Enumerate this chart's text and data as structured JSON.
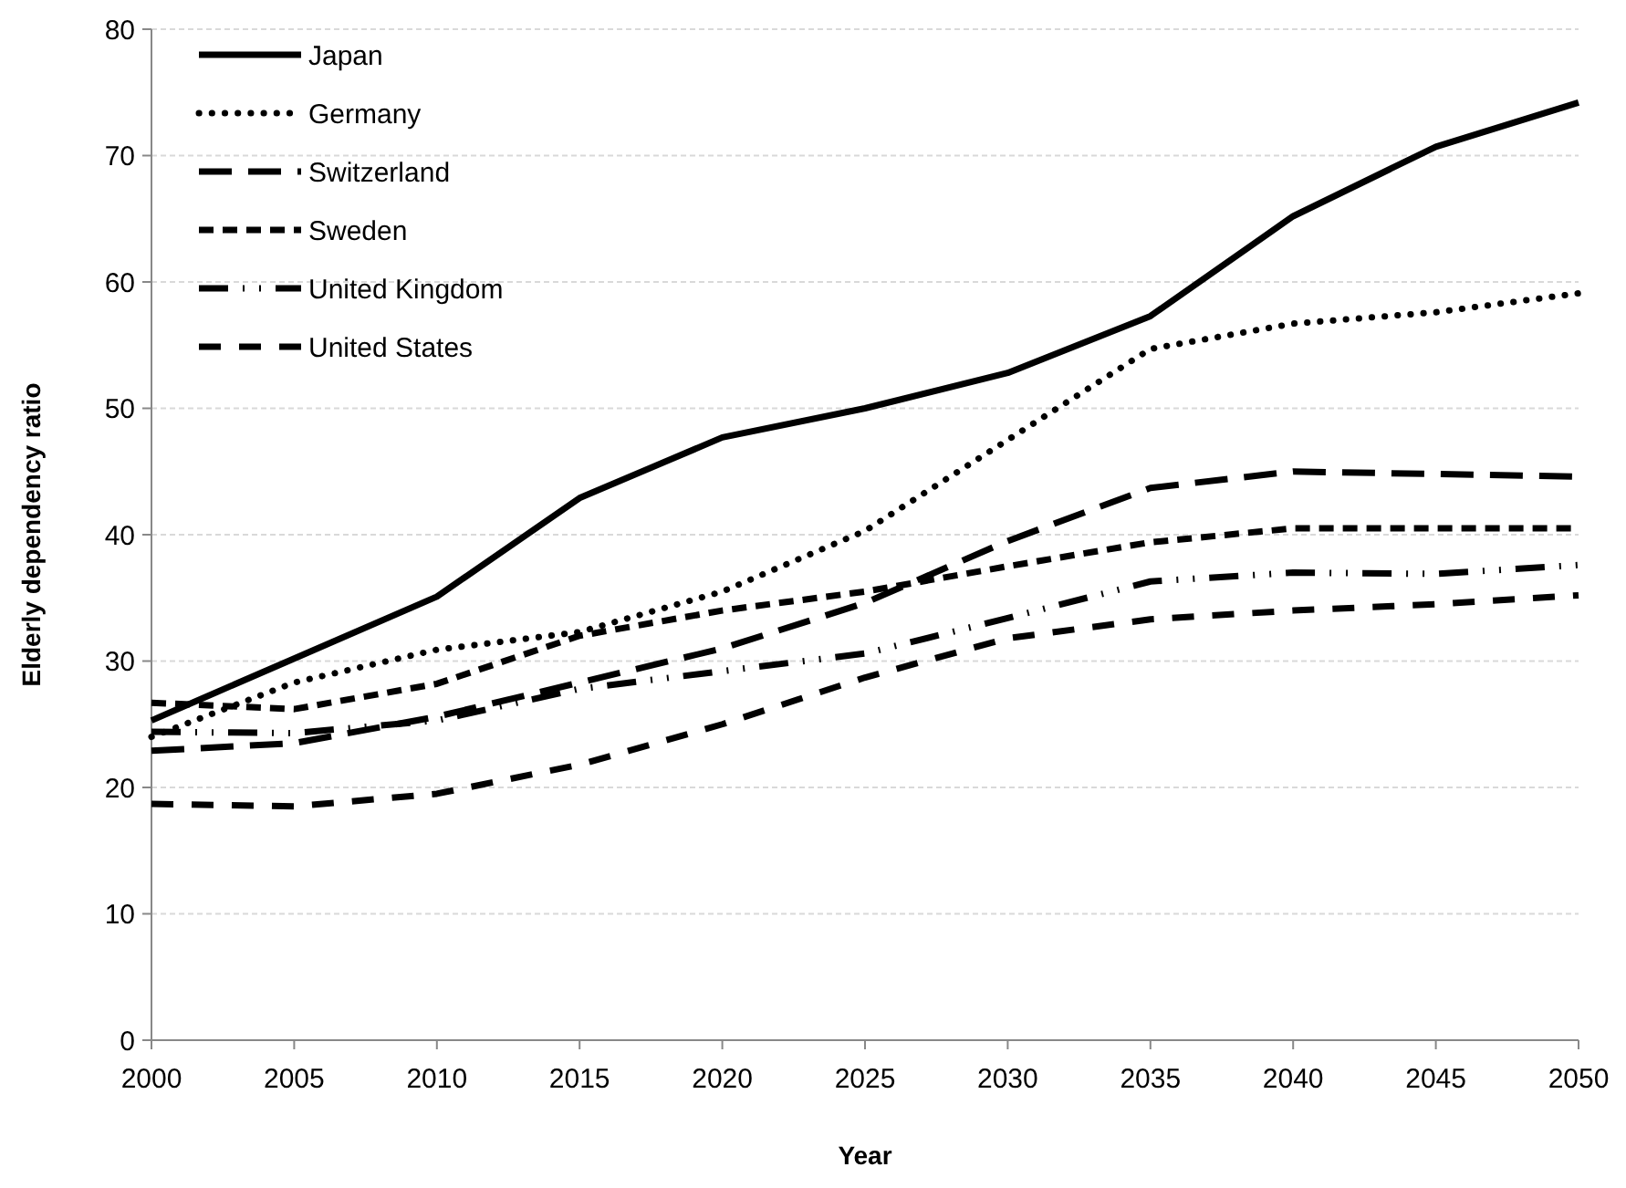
{
  "chart_data": {
    "type": "line",
    "xlabel": "Year",
    "ylabel": "Elderly dependency ratio",
    "x": [
      2000,
      2005,
      2010,
      2015,
      2020,
      2025,
      2030,
      2035,
      2040,
      2045,
      2050
    ],
    "xlim": [
      2000,
      2050
    ],
    "xticks": [
      2000,
      2005,
      2010,
      2015,
      2020,
      2025,
      2030,
      2035,
      2040,
      2045,
      2050
    ],
    "ylim": [
      0,
      80
    ],
    "yticks": [
      0,
      10,
      20,
      30,
      40,
      50,
      60,
      70,
      80
    ],
    "grid": "y",
    "legend": "top left",
    "marker": "none",
    "series": [
      {
        "name": "Japan",
        "color": "#000000",
        "line_style": "solid",
        "values": [
          25.3,
          30.2,
          35.1,
          42.9,
          47.7,
          50.0,
          52.8,
          57.3,
          65.2,
          70.7,
          74.2
        ]
      },
      {
        "name": "Germany",
        "color": "#000000",
        "line_style": "dotted",
        "values": [
          24.0,
          28.3,
          30.9,
          32.3,
          35.5,
          40.3,
          47.5,
          54.7,
          56.7,
          57.6,
          59.1
        ]
      },
      {
        "name": "Switzerland",
        "color": "#000000",
        "line_style": "dashed",
        "values": [
          22.9,
          23.5,
          25.6,
          28.3,
          31.0,
          34.6,
          39.5,
          43.7,
          45.0,
          44.8,
          44.6
        ]
      },
      {
        "name": "Sweden",
        "color": "#000000",
        "line_style": "dashed",
        "values": [
          26.7,
          26.2,
          28.2,
          32.0,
          34.0,
          35.5,
          37.5,
          39.4,
          40.5,
          40.5,
          40.5
        ]
      },
      {
        "name": "United Kingdom",
        "color": "#000000",
        "line_style": "dashed",
        "values": [
          24.4,
          24.3,
          25.3,
          27.8,
          29.2,
          30.6,
          33.4,
          36.3,
          37.0,
          36.9,
          37.6
        ]
      },
      {
        "name": "United States",
        "color": "#000000",
        "line_style": "dashed",
        "values": [
          18.7,
          18.5,
          19.5,
          21.8,
          25.0,
          28.7,
          31.8,
          33.3,
          34.0,
          34.5,
          35.2
        ]
      }
    ]
  }
}
